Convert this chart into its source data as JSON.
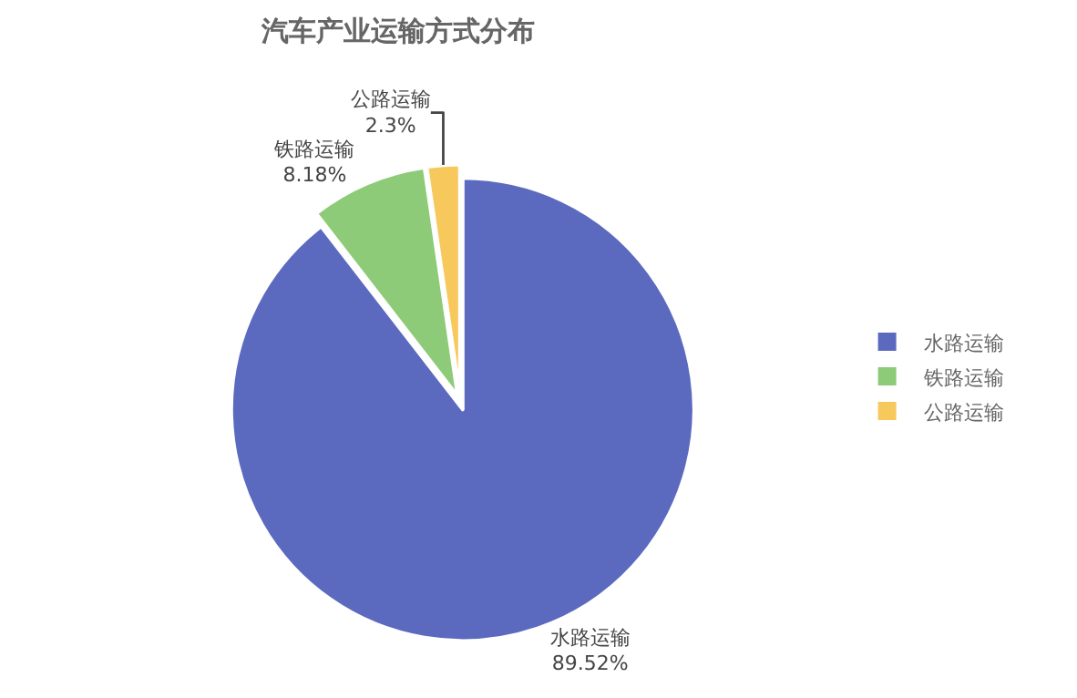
{
  "chart_data": {
    "type": "pie",
    "title": "汽车产业运输方式分布",
    "categories": [
      "水路运输",
      "铁路运输",
      "公路运输"
    ],
    "values": [
      89.52,
      8.18,
      2.3
    ],
    "value_labels": [
      "89.52%",
      "8.18%",
      "2.3%"
    ],
    "colors": [
      "#5b6abf",
      "#8dcb78",
      "#f7c95c"
    ],
    "legend": "right"
  }
}
